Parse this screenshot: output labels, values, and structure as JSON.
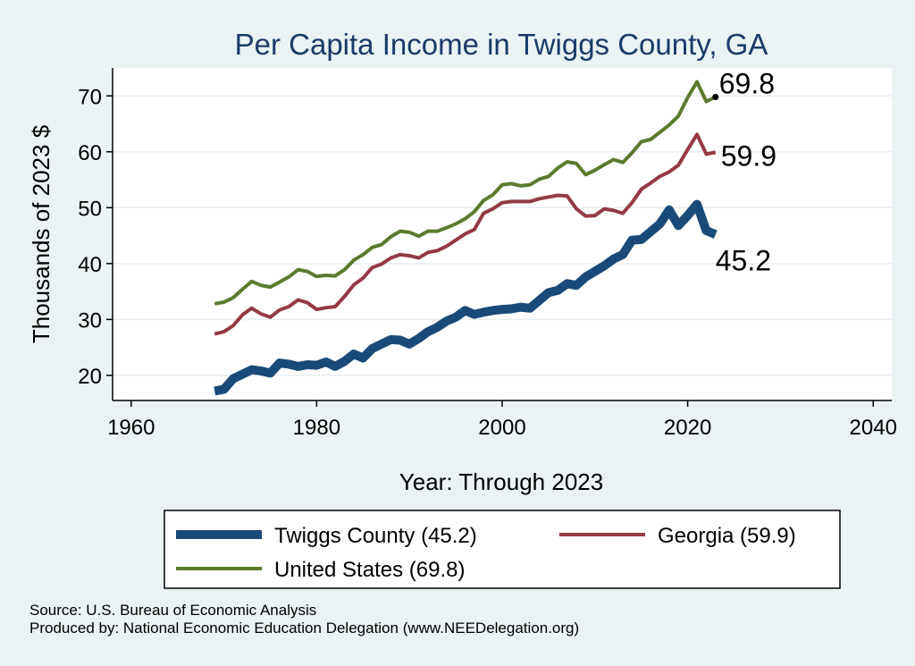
{
  "chart_data": {
    "type": "line",
    "title": "Per Capita Income in Twiggs County, GA",
    "xlabel": "Year: Through 2023",
    "ylabel": "Thousands of 2023 $",
    "xlim": [
      1958,
      2042
    ],
    "ylim": [
      15.5,
      75
    ],
    "xticks": [
      1960,
      1980,
      2000,
      2020,
      2040
    ],
    "yticks": [
      20,
      30,
      40,
      50,
      60,
      70
    ],
    "grid": true,
    "legend_position": "bottom",
    "x": [
      1969,
      1970,
      1971,
      1972,
      1973,
      1974,
      1975,
      1976,
      1977,
      1978,
      1979,
      1980,
      1981,
      1982,
      1983,
      1984,
      1985,
      1986,
      1987,
      1988,
      1989,
      1990,
      1991,
      1992,
      1993,
      1994,
      1995,
      1996,
      1997,
      1998,
      1999,
      2000,
      2001,
      2002,
      2003,
      2004,
      2005,
      2006,
      2007,
      2008,
      2009,
      2010,
      2011,
      2012,
      2013,
      2014,
      2015,
      2016,
      2017,
      2018,
      2019,
      2020,
      2021,
      2022,
      2023
    ],
    "series": [
      {
        "name": "Twiggs County (45.2)",
        "color": "#1a4a78",
        "end_label": "45.2",
        "values": [
          17.2,
          17.5,
          19.4,
          20.2,
          21.0,
          20.8,
          20.4,
          22.2,
          22.0,
          21.6,
          21.9,
          21.8,
          22.4,
          21.6,
          22.5,
          23.8,
          23.1,
          24.8,
          25.6,
          26.4,
          26.3,
          25.6,
          26.6,
          27.8,
          28.6,
          29.7,
          30.4,
          31.6,
          30.9,
          31.3,
          31.6,
          31.8,
          31.9,
          32.2,
          32.0,
          33.4,
          34.8,
          35.2,
          36.4,
          36.1,
          37.6,
          38.6,
          39.6,
          40.8,
          41.6,
          44.2,
          44.3,
          45.7,
          47.1,
          49.6,
          46.8,
          48.6,
          50.6,
          45.9,
          45.2
        ]
      },
      {
        "name": "Georgia (59.9)",
        "color": "#943a45",
        "end_label": "59.9",
        "values": [
          27.4,
          27.8,
          28.9,
          30.8,
          32.0,
          31.0,
          30.4,
          31.7,
          32.3,
          33.5,
          33.0,
          31.8,
          32.1,
          32.3,
          34.1,
          36.2,
          37.4,
          39.3,
          39.9,
          41.0,
          41.6,
          41.4,
          41.0,
          42.0,
          42.3,
          43.1,
          44.2,
          45.3,
          46.1,
          49.0,
          49.8,
          50.9,
          51.1,
          51.1,
          51.1,
          51.6,
          51.9,
          52.2,
          52.1,
          49.8,
          48.5,
          48.6,
          49.8,
          49.5,
          49.0,
          50.9,
          53.3,
          54.4,
          55.6,
          56.4,
          57.6,
          60.4,
          63.1,
          59.6,
          59.9
        ]
      },
      {
        "name": "United States (69.8)",
        "color": "#5b7a2e",
        "end_label": "69.8",
        "values": [
          32.8,
          33.1,
          33.9,
          35.4,
          36.8,
          36.1,
          35.8,
          36.7,
          37.6,
          38.9,
          38.6,
          37.7,
          37.9,
          37.8,
          38.9,
          40.6,
          41.6,
          42.9,
          43.4,
          44.8,
          45.8,
          45.6,
          44.9,
          45.8,
          45.8,
          46.4,
          47.1,
          48.0,
          49.3,
          51.3,
          52.3,
          54.1,
          54.3,
          53.9,
          54.1,
          55.1,
          55.6,
          57.1,
          58.2,
          57.9,
          55.9,
          56.7,
          57.7,
          58.6,
          58.1,
          59.8,
          61.8,
          62.2,
          63.5,
          64.8,
          66.4,
          69.7,
          72.5,
          69.0,
          69.8
        ]
      }
    ]
  },
  "footer": {
    "source": "Source: U.S. Bureau of Economic Analysis",
    "produced_by": "Produced by: National Economic Education Delegation (www.NEEDelegation.org)"
  }
}
